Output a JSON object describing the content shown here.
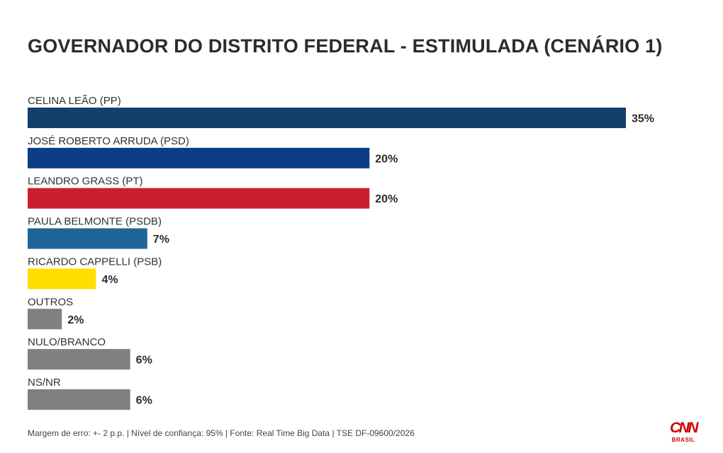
{
  "chart_data": {
    "type": "bar",
    "orientation": "horizontal",
    "title": "GOVERNADOR DO DISTRITO FEDERAL - ESTIMULADA (CENÁRIO 1)",
    "categories": [
      "CELINA LEÃO (PP)",
      "JOSÉ ROBERTO ARRUDA (PSD)",
      "LEANDRO GRASS (PT)",
      "PAULA BELMONTE (PSDB)",
      "RICARDO CAPPELLI (PSB)",
      "OUTROS",
      "NULO/BRANCO",
      "NS/NR"
    ],
    "values": [
      35,
      20,
      20,
      7,
      4,
      2,
      6,
      6
    ],
    "value_labels": [
      "35%",
      "20%",
      "20%",
      "7%",
      "4%",
      "2%",
      "6%",
      "6%"
    ],
    "colors": [
      "#143f6b",
      "#0c3e85",
      "#cc1f2d",
      "#1f6496",
      "#ffde00",
      "#808080",
      "#808080",
      "#808080"
    ],
    "unit": "%",
    "grid": false,
    "legend": "none"
  },
  "footnote": "Margem de erro: +- 2 p.p. | Nível de confiança: 95% | Fonte: Real Time Big Data | TSE DF-09600/2026",
  "logo": {
    "mark": "CNN",
    "sub": "BRASIL",
    "color": "#cc0000"
  }
}
